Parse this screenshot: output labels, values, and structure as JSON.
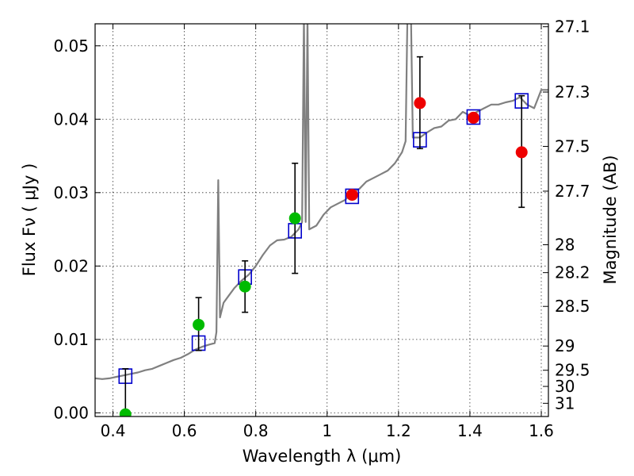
{
  "chart_data": {
    "type": "scatter",
    "xlabel": "Wavelength  λ (μm)",
    "ylabel": "Flux  Fν  ( μJy )",
    "ylabel_right": "Magnitude (AB)",
    "xlim": [
      0.35,
      1.62
    ],
    "ylim": [
      -0.0005,
      0.053
    ],
    "x_ticks": [
      0.4,
      0.6,
      0.8,
      1.0,
      1.2,
      1.4,
      1.6
    ],
    "x_tick_labels": [
      "0.4",
      "0.6",
      "0.8",
      "1",
      "1.2",
      "1.4",
      "1.6"
    ],
    "y_ticks": [
      0.0,
      0.01,
      0.02,
      0.03,
      0.04,
      0.05
    ],
    "y_tick_labels": [
      "0.00",
      "0.01",
      "0.02",
      "0.03",
      "0.04",
      "0.05"
    ],
    "right_ticks": [
      {
        "flux": 0.0526,
        "label": "27.1"
      },
      {
        "flux": 0.0437,
        "label": "27.3"
      },
      {
        "flux": 0.0363,
        "label": "27.5"
      },
      {
        "flux": 0.0302,
        "label": "27.7"
      },
      {
        "flux": 0.0229,
        "label": "28"
      },
      {
        "flux": 0.0191,
        "label": "28.2"
      },
      {
        "flux": 0.0145,
        "label": "28.5"
      },
      {
        "flux": 0.0091,
        "label": "29"
      },
      {
        "flux": 0.0058,
        "label": "29.5"
      },
      {
        "flux": 0.0036,
        "label": "30"
      },
      {
        "flux": 0.0013,
        "label": "31"
      }
    ],
    "grid": true,
    "series": [
      {
        "kind": "line",
        "color": "#808080",
        "points": [
          [
            0.35,
            0.0047
          ],
          [
            0.37,
            0.0046
          ],
          [
            0.39,
            0.0047
          ],
          [
            0.41,
            0.0049
          ],
          [
            0.43,
            0.0051
          ],
          [
            0.45,
            0.0053
          ],
          [
            0.47,
            0.0055
          ],
          [
            0.49,
            0.0058
          ],
          [
            0.51,
            0.006
          ],
          [
            0.53,
            0.0064
          ],
          [
            0.55,
            0.0068
          ],
          [
            0.57,
            0.0072
          ],
          [
            0.59,
            0.0075
          ],
          [
            0.61,
            0.008
          ],
          [
            0.63,
            0.0086
          ],
          [
            0.65,
            0.009
          ],
          [
            0.67,
            0.0093
          ],
          [
            0.685,
            0.0095
          ],
          [
            0.69,
            0.011
          ],
          [
            0.695,
            0.0317
          ],
          [
            0.7,
            0.013
          ],
          [
            0.71,
            0.015
          ],
          [
            0.725,
            0.016
          ],
          [
            0.74,
            0.017
          ],
          [
            0.76,
            0.018
          ],
          [
            0.78,
            0.0188
          ],
          [
            0.8,
            0.02
          ],
          [
            0.82,
            0.0215
          ],
          [
            0.84,
            0.0228
          ],
          [
            0.86,
            0.0235
          ],
          [
            0.88,
            0.0236
          ],
          [
            0.9,
            0.024
          ],
          [
            0.92,
            0.025
          ],
          [
            0.93,
            0.026
          ],
          [
            0.935,
            0.054
          ],
          [
            0.94,
            0.026
          ],
          [
            0.945,
            0.054
          ],
          [
            0.95,
            0.025
          ],
          [
            0.97,
            0.0255
          ],
          [
            0.99,
            0.027
          ],
          [
            1.01,
            0.028
          ],
          [
            1.03,
            0.0285
          ],
          [
            1.05,
            0.029
          ],
          [
            1.07,
            0.03
          ],
          [
            1.09,
            0.0305
          ],
          [
            1.11,
            0.0315
          ],
          [
            1.13,
            0.032
          ],
          [
            1.15,
            0.0325
          ],
          [
            1.17,
            0.033
          ],
          [
            1.19,
            0.034
          ],
          [
            1.21,
            0.0355
          ],
          [
            1.22,
            0.037
          ],
          [
            1.225,
            0.054
          ],
          [
            1.235,
            0.054
          ],
          [
            1.24,
            0.0375
          ],
          [
            1.26,
            0.0375
          ],
          [
            1.28,
            0.0382
          ],
          [
            1.3,
            0.0388
          ],
          [
            1.32,
            0.039
          ],
          [
            1.34,
            0.0398
          ],
          [
            1.36,
            0.04
          ],
          [
            1.38,
            0.041
          ],
          [
            1.4,
            0.0405
          ],
          [
            1.42,
            0.041
          ],
          [
            1.44,
            0.0415
          ],
          [
            1.46,
            0.042
          ],
          [
            1.48,
            0.042
          ],
          [
            1.5,
            0.0423
          ],
          [
            1.52,
            0.0425
          ],
          [
            1.54,
            0.043
          ],
          [
            1.56,
            0.042
          ],
          [
            1.58,
            0.0415
          ],
          [
            1.6,
            0.044
          ],
          [
            1.62,
            0.044
          ]
        ]
      },
      {
        "kind": "model-squares",
        "color": "#0000cc",
        "points": [
          [
            0.435,
            0.005
          ],
          [
            0.64,
            0.0095
          ],
          [
            0.77,
            0.0185
          ],
          [
            0.91,
            0.0248
          ],
          [
            1.07,
            0.0295
          ],
          [
            1.26,
            0.0372
          ],
          [
            1.41,
            0.0403
          ],
          [
            1.545,
            0.0425
          ]
        ]
      },
      {
        "kind": "detections",
        "color": "#00bb00",
        "points": [
          [
            0.435,
            -0.0002,
            0.0,
            0.006
          ],
          [
            0.64,
            0.012,
            0.0085,
            0.0157
          ],
          [
            0.77,
            0.0172,
            0.0137,
            0.0207
          ],
          [
            0.91,
            0.0265,
            0.019,
            0.034
          ]
        ]
      },
      {
        "kind": "detections",
        "color": "#ee0000",
        "points": [
          [
            1.07,
            0.0297,
            0.0292,
            0.0302
          ],
          [
            1.26,
            0.0422,
            0.036,
            0.0485
          ],
          [
            1.41,
            0.0402,
            0.0397,
            0.0407
          ],
          [
            1.545,
            0.0355,
            0.028,
            0.0432
          ]
        ]
      }
    ]
  }
}
